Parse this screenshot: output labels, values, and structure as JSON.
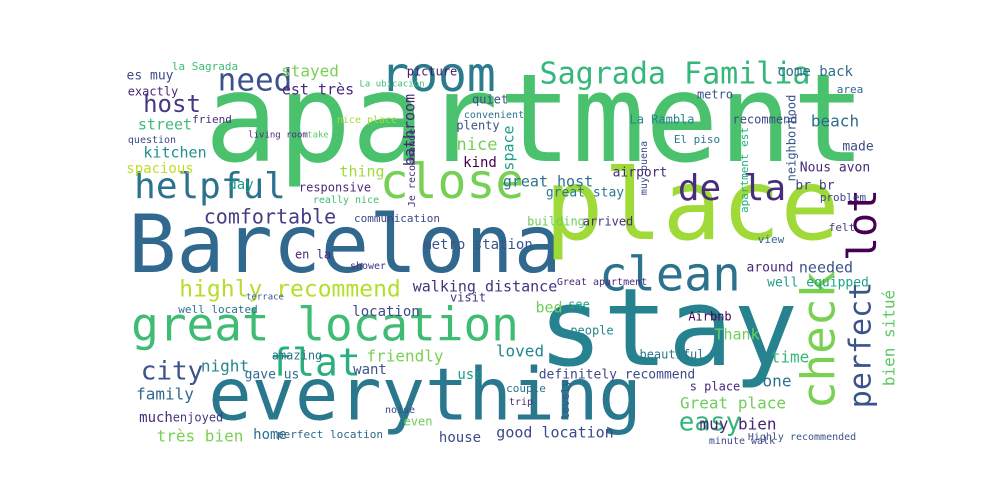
{
  "words": [
    {
      "text": "apartment",
      "color": "#4ac16d"
    },
    {
      "text": "Barcelona",
      "color": "#31688e"
    },
    {
      "text": "place",
      "color": "#a0da39"
    },
    {
      "text": "stay",
      "color": "#26828e"
    },
    {
      "text": "everything",
      "color": "#2a788e"
    },
    {
      "text": "great location",
      "color": "#3fbc73"
    },
    {
      "text": "clean",
      "color": "#2c728e"
    },
    {
      "text": "close",
      "color": "#75d054"
    },
    {
      "text": "room",
      "color": "#2a7b8e"
    },
    {
      "text": "Sagrada Familia",
      "color": "#35b779"
    },
    {
      "text": "need",
      "color": "#3b528b"
    },
    {
      "text": "helpful",
      "color": "#2c728e"
    },
    {
      "text": "de la",
      "color": "#472d7b"
    },
    {
      "text": "lot",
      "color": "#440154"
    },
    {
      "text": "perfect",
      "color": "#3b528b"
    },
    {
      "text": "check",
      "color": "#7ad151"
    },
    {
      "text": "flat",
      "color": "#29af7f"
    },
    {
      "text": "city",
      "color": "#3b528b"
    },
    {
      "text": "highly recommend",
      "color": "#b5de2b"
    },
    {
      "text": "comfortable",
      "color": "#433e85"
    },
    {
      "text": "host",
      "color": "#443983"
    },
    {
      "text": "easy",
      "color": "#32b67a"
    },
    {
      "text": "walking distance",
      "color": "#46337e"
    },
    {
      "text": "metro station",
      "color": "#39568c"
    },
    {
      "text": "bien situé",
      "color": "#5ec962"
    },
    {
      "text": "stayed",
      "color": "#7ad151"
    },
    {
      "text": "est très",
      "color": "#482878"
    },
    {
      "text": "bathroom",
      "color": "#482475"
    },
    {
      "text": "quiet",
      "color": "#3e4989"
    },
    {
      "text": "picture",
      "color": "#481a6c"
    },
    {
      "text": "La Rambla",
      "color": "#25848e"
    },
    {
      "text": "metro",
      "color": "#3b528b"
    },
    {
      "text": "come back",
      "color": "#2d708e"
    },
    {
      "text": "recommend",
      "color": "#3e4989"
    },
    {
      "text": "area",
      "color": "#31688e"
    },
    {
      "text": "beach",
      "color": "#2f6c8e"
    },
    {
      "text": "made",
      "color": "#3e4a89"
    },
    {
      "text": "Nous avon",
      "color": "#482878"
    },
    {
      "text": "br br",
      "color": "#433d84"
    },
    {
      "text": "neighborhood",
      "color": "#38588c"
    },
    {
      "text": "apartment est",
      "color": "#26ad81"
    },
    {
      "text": "street",
      "color": "#3fbc73"
    },
    {
      "text": "question",
      "color": "#3e4989"
    },
    {
      "text": "kitchen",
      "color": "#21918c"
    },
    {
      "text": "spacious",
      "color": "#bddf26"
    },
    {
      "text": "es muy",
      "color": "#3e4a89"
    },
    {
      "text": "exactly",
      "color": "#482878"
    },
    {
      "text": "la Sagrada",
      "color": "#3fbc73"
    },
    {
      "text": "friend",
      "color": "#46307e"
    },
    {
      "text": "day",
      "color": "#1f9e89"
    },
    {
      "text": "night",
      "color": "#25848e"
    },
    {
      "text": "nice",
      "color": "#75d054"
    },
    {
      "text": "nice place",
      "color": "#9fda3a"
    },
    {
      "text": "kind",
      "color": "#440154"
    },
    {
      "text": "space",
      "color": "#1f9e89"
    },
    {
      "text": "plenty",
      "color": "#3b528b"
    },
    {
      "text": "thing",
      "color": "#9fda3a"
    },
    {
      "text": "responsive",
      "color": "#472d7b"
    },
    {
      "text": "really nice",
      "color": "#3fbc73"
    },
    {
      "text": "great host",
      "color": "#2c728e"
    },
    {
      "text": "great stay",
      "color": "#2a788e"
    },
    {
      "text": "airport",
      "color": "#482878"
    },
    {
      "text": "communication",
      "color": "#3e4989"
    },
    {
      "text": "building",
      "color": "#6ece58"
    },
    {
      "text": "arrived",
      "color": "#472d7b"
    },
    {
      "text": "needed",
      "color": "#3b528b"
    },
    {
      "text": "well equipped",
      "color": "#1fa188"
    },
    {
      "text": "around",
      "color": "#482878"
    },
    {
      "text": "Thank",
      "color": "#6ece58"
    },
    {
      "text": "Airbnb",
      "color": "#440154"
    },
    {
      "text": "location",
      "color": "#3e4989"
    },
    {
      "text": "bed",
      "color": "#6ece58"
    },
    {
      "text": "see",
      "color": "#1f9e89"
    },
    {
      "text": "people",
      "color": "#24868e"
    },
    {
      "text": "visit",
      "color": "#46337e"
    },
    {
      "text": "loved",
      "color": "#24868e"
    },
    {
      "text": "friendly",
      "color": "#7ad151"
    },
    {
      "text": "want",
      "color": "#3b528b"
    },
    {
      "text": "use",
      "color": "#1f9e89"
    },
    {
      "text": "definitely recommend",
      "color": "#3e4989"
    },
    {
      "text": "Great place",
      "color": "#6ece58"
    },
    {
      "text": "one",
      "color": "#2c728e"
    },
    {
      "text": "time",
      "color": "#35b779"
    },
    {
      "text": "s place",
      "color": "#482878"
    },
    {
      "text": "muy bien",
      "color": "#482475"
    },
    {
      "text": "family",
      "color": "#31688e"
    },
    {
      "text": "much",
      "color": "#472d7b"
    },
    {
      "text": "enjoyed",
      "color": "#443983"
    },
    {
      "text": "très bien",
      "color": "#7ad151"
    },
    {
      "text": "home",
      "color": "#2e6e8e"
    },
    {
      "text": "amazing",
      "color": "#2c728e"
    },
    {
      "text": "gave us",
      "color": "#2f6c8e"
    },
    {
      "text": "perfect location",
      "color": "#31688e"
    },
    {
      "text": "house",
      "color": "#3e4989"
    },
    {
      "text": "good location",
      "color": "#3e4989"
    },
    {
      "text": "even",
      "color": "#6ece58"
    },
    {
      "text": "well located",
      "color": "#2c728e"
    },
    {
      "text": "en la",
      "color": "#482878"
    },
    {
      "text": "shower",
      "color": "#46327e"
    },
    {
      "text": "terrace",
      "color": "#3b528b"
    },
    {
      "text": "beautiful",
      "color": "#2c728e"
    },
    {
      "text": "Highly recommended",
      "color": "#3b528b"
    },
    {
      "text": "minute walk",
      "color": "#3e4989"
    },
    {
      "text": "Great apartment",
      "color": "#482878"
    },
    {
      "text": "La ubicación",
      "color": "#3fbc73"
    },
    {
      "text": "convenient",
      "color": "#2c728e"
    },
    {
      "text": "living room",
      "color": "#482878"
    },
    {
      "text": "take",
      "color": "#5ec962"
    },
    {
      "text": "lovely",
      "color": "#3b528b"
    },
    {
      "text": "noise",
      "color": "#3e4989"
    },
    {
      "text": "couple",
      "color": "#2c728e"
    },
    {
      "text": "trip",
      "color": "#472d7b"
    },
    {
      "text": "problem",
      "color": "#3e4989"
    },
    {
      "text": "felt",
      "color": "#443983"
    },
    {
      "text": "view",
      "color": "#31688e"
    },
    {
      "text": "El piso",
      "color": "#2a788e"
    },
    {
      "text": "Je recommande",
      "color": "#472d7b"
    },
    {
      "text": "muy buena",
      "color": "#3e4989"
    }
  ]
}
